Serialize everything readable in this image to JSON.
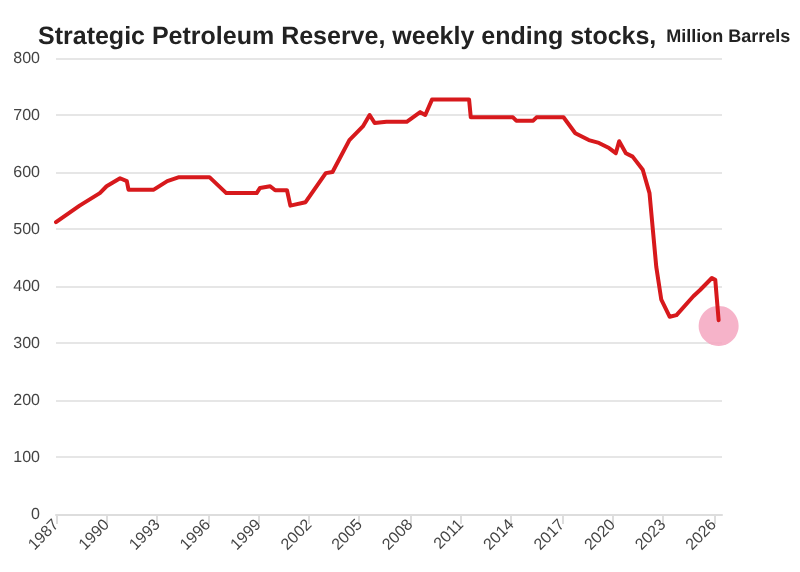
{
  "chart_data": {
    "type": "line",
    "title": "Strategic Petroleum Reserve, weekly ending stocks,",
    "subtitle": "Million Barrels",
    "xlim": [
      1987,
      2026.5
    ],
    "xticks": [
      1987,
      1990,
      1993,
      1996,
      1999,
      2002,
      2005,
      2008,
      2011,
      2014,
      2017,
      2020,
      2023,
      2026
    ],
    "ylim": [
      0,
      800
    ],
    "yticks": [
      0,
      100,
      200,
      300,
      400,
      500,
      600,
      700,
      800
    ],
    "grid": "y",
    "marker": "none",
    "line_style": "solid",
    "series": [
      {
        "color": "#d7191c",
        "x": [
          1987.0,
          1988.4,
          1989.6,
          1990.0,
          1990.8,
          1991.2,
          1991.3,
          1992.8,
          1993.6,
          1994.3,
          1996.1,
          1997.1,
          1998.9,
          1999.1,
          1999.7,
          2000.0,
          2000.7,
          2000.9,
          2001.8,
          2003.0,
          2003.4,
          2004.4,
          2005.2,
          2005.6,
          2005.9,
          2006.6,
          2007.8,
          2008.6,
          2008.9,
          2009.3,
          2011.5,
          2011.6,
          2014.1,
          2014.3,
          2015.3,
          2015.5,
          2017.1,
          2017.8,
          2018.6,
          2019.2,
          2019.8,
          2020.2,
          2020.4,
          2020.8,
          2021.2,
          2021.8,
          2022.2,
          2022.6,
          2022.9,
          2023.4,
          2023.8,
          2024.8,
          2025.2,
          2025.9,
          2026.1,
          2026.3
        ],
        "values": [
          512,
          541,
          563,
          575,
          589,
          584,
          569,
          569,
          584,
          591,
          591,
          563,
          563,
          572,
          575,
          568,
          568,
          541,
          547,
          598,
          600,
          656,
          680,
          700,
          686,
          688,
          688,
          705,
          700,
          727,
          727,
          696,
          696,
          690,
          690,
          696,
          696,
          668,
          656,
          651,
          642,
          633,
          654,
          633,
          627,
          604,
          563,
          434,
          376,
          346,
          349,
          382,
          393,
          414,
          411,
          340
        ]
      },
      {
        "type": "scatter",
        "marker": "circle",
        "color": "#f4a6c0",
        "x": [
          2026.3
        ],
        "values": [
          330
        ]
      }
    ]
  }
}
